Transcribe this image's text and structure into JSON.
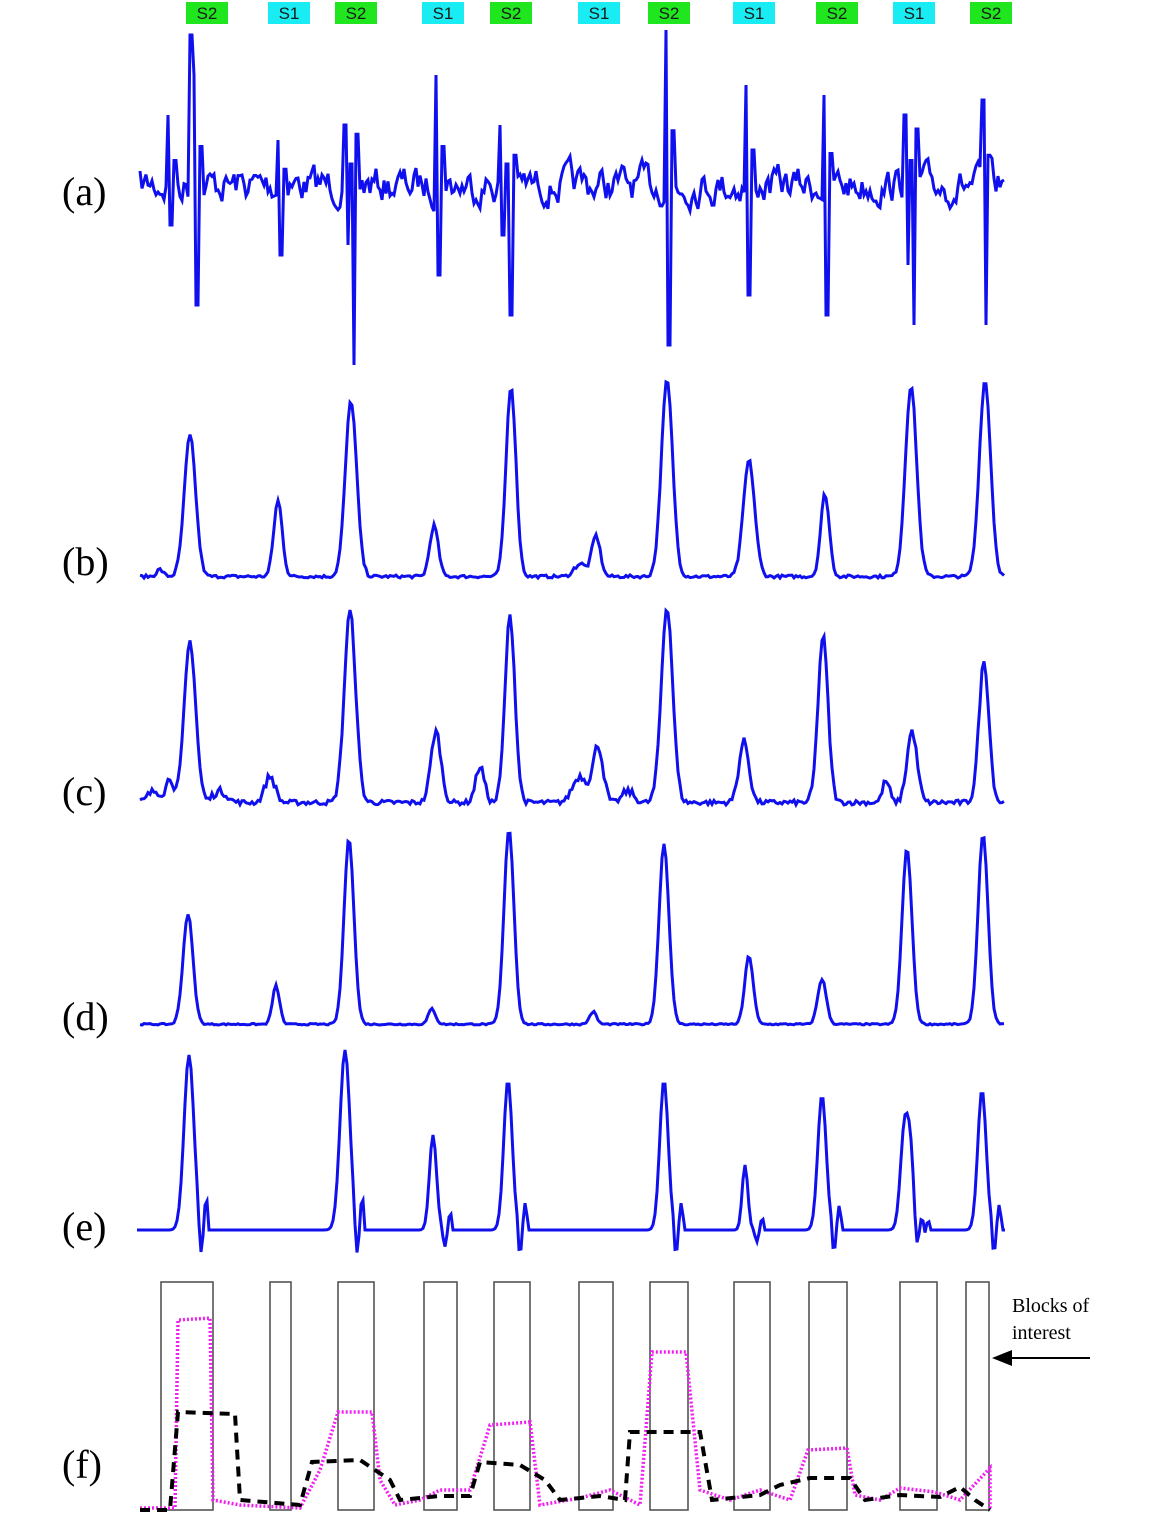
{
  "colors": {
    "trace": "#1010ee",
    "s1_tag": "#19ecf2",
    "s2_tag": "#1fe61f",
    "envelope_magenta": "#f020f0",
    "envelope_black": "#000000",
    "block_outline": "#555555"
  },
  "segment_tags": [
    {
      "text": "S2",
      "kind": "S2"
    },
    {
      "text": "S1",
      "kind": "S1"
    },
    {
      "text": "S2",
      "kind": "S2"
    },
    {
      "text": "S1",
      "kind": "S1"
    },
    {
      "text": "S2",
      "kind": "S2"
    },
    {
      "text": "S1",
      "kind": "S1"
    },
    {
      "text": "S2",
      "kind": "S2"
    },
    {
      "text": "S1",
      "kind": "S1"
    },
    {
      "text": "S2",
      "kind": "S2"
    },
    {
      "text": "S1",
      "kind": "S1"
    },
    {
      "text": "S2",
      "kind": "S2"
    }
  ],
  "panels": [
    {
      "id": "a",
      "label": "(a)",
      "kind": "raw_signal"
    },
    {
      "id": "b",
      "label": "(b)",
      "kind": "envelope"
    },
    {
      "id": "c",
      "label": "(c)",
      "kind": "envelope"
    },
    {
      "id": "d",
      "label": "(d)",
      "kind": "envelope"
    },
    {
      "id": "e",
      "label": "(e)",
      "kind": "bipolar_envelope"
    },
    {
      "id": "f",
      "label": "(f)",
      "kind": "blocks"
    }
  ],
  "annotation": {
    "line1": "Blocks of",
    "line2": "interest",
    "arrow": "left-arrow"
  }
}
